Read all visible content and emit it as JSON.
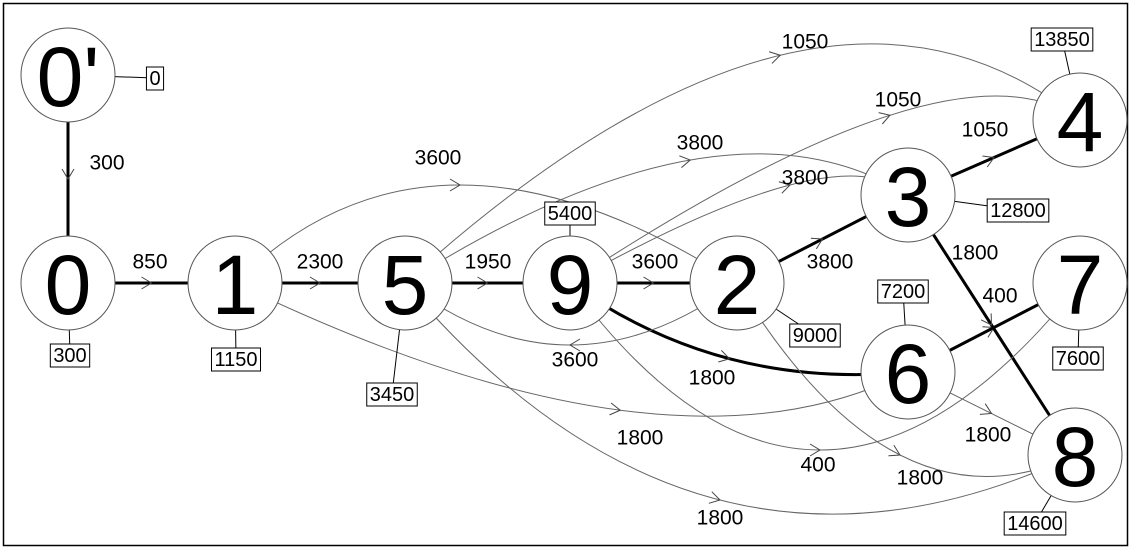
{
  "nodes": [
    {
      "label": "0'",
      "value": 0
    },
    {
      "label": "0",
      "value": 300
    },
    {
      "label": "1",
      "value": 1150
    },
    {
      "label": "5",
      "value": 3450
    },
    {
      "label": "9",
      "value": 5400
    },
    {
      "label": "2",
      "value": 9000
    },
    {
      "label": "3",
      "value": 12800
    },
    {
      "label": "4",
      "value": 13850
    },
    {
      "label": "7",
      "value": 7600
    },
    {
      "label": "6",
      "value": 7200
    },
    {
      "label": "8",
      "value": 14600
    }
  ],
  "edges": [
    {
      "from": 0,
      "to": 1,
      "label": 300,
      "critical": true
    },
    {
      "from": 1,
      "to": 2,
      "label": 850,
      "critical": true
    },
    {
      "from": 2,
      "to": 3,
      "label": 2300,
      "critical": true
    },
    {
      "from": 3,
      "to": 4,
      "label": 1950,
      "critical": true
    },
    {
      "from": 4,
      "to": 5,
      "label": 3600,
      "critical": true
    },
    {
      "from": 5,
      "to": 6,
      "label": 3800,
      "critical": true
    },
    {
      "from": 6,
      "to": 7,
      "label": 1050,
      "critical": true
    },
    {
      "from": 4,
      "to": 9,
      "label": 1800,
      "critical": true
    },
    {
      "from": 9,
      "to": 8,
      "label": 400,
      "critical": true
    },
    {
      "from": 6,
      "to": 10,
      "label": 1800,
      "critical": true
    },
    {
      "from": 3,
      "to": 7,
      "label": 1050,
      "critical": false
    },
    {
      "from": 4,
      "to": 7,
      "label": 1050,
      "critical": false
    },
    {
      "from": 3,
      "to": 6,
      "label": 3800,
      "critical": false
    },
    {
      "from": 4,
      "to": 6,
      "label": 3800,
      "critical": false
    },
    {
      "from": 2,
      "to": 5,
      "label": 3600,
      "critical": false
    },
    {
      "from": 5,
      "to": 3,
      "label": 3600,
      "critical": false
    },
    {
      "from": 2,
      "to": 9,
      "label": 1800,
      "critical": false
    },
    {
      "from": 3,
      "to": 10,
      "label": 1800,
      "critical": false
    },
    {
      "from": 4,
      "to": 8,
      "label": 400,
      "critical": false
    },
    {
      "from": 5,
      "to": 10,
      "label": 1800,
      "critical": false
    },
    {
      "from": 9,
      "to": 10,
      "label": 1800,
      "critical": false
    }
  ]
}
